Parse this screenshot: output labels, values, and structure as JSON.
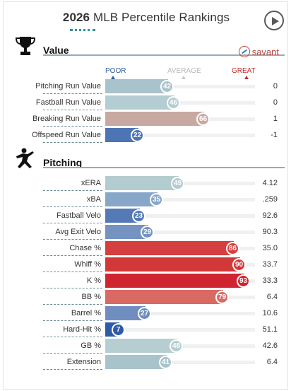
{
  "header": {
    "year": "2026",
    "title_rest": "MLB Percentile Rankings"
  },
  "sections": [
    {
      "label": "Value",
      "icon": "trophy-icon",
      "link_label": "savant",
      "rows": [
        {
          "name": "Pitching Run Value",
          "pct": 42,
          "value": "0",
          "color": "#a8c3cb"
        },
        {
          "name": "Fastball Run Value",
          "pct": 46,
          "value": "0",
          "color": "#b4cdd2"
        },
        {
          "name": "Breaking Run Value",
          "pct": 66,
          "value": "1",
          "color": "#c8a9a2"
        },
        {
          "name": "Offspeed Run Value",
          "pct": 22,
          "value": "-1",
          "color": "#4d74b4"
        }
      ]
    },
    {
      "label": "Pitching",
      "icon": "pitcher-icon",
      "rows": [
        {
          "name": "xERA",
          "pct": 49,
          "value": "4.12",
          "color": "#b3ccd0"
        },
        {
          "name": "xBA",
          "pct": 35,
          "value": ".259",
          "color": "#87a7c8"
        },
        {
          "name": "Fastball Velo",
          "pct": 23,
          "value": "92.6",
          "color": "#5479b5"
        },
        {
          "name": "Avg Exit Velo",
          "pct": 29,
          "value": "90.3",
          "color": "#7593c1"
        },
        {
          "name": "Chase %",
          "pct": 86,
          "value": "35.0",
          "color": "#d43f3f"
        },
        {
          "name": "Whiff %",
          "pct": 90,
          "value": "33.7",
          "color": "#d33838"
        },
        {
          "name": "K %",
          "pct": 93,
          "value": "33.3",
          "color": "#cf2530"
        },
        {
          "name": "BB %",
          "pct": 79,
          "value": "6.4",
          "color": "#d86a63"
        },
        {
          "name": "Barrel %",
          "pct": 27,
          "value": "10.6",
          "color": "#6f8ebf"
        },
        {
          "name": "Hard-Hit %",
          "pct": 7,
          "value": "51.1",
          "color": "#2e5aa6"
        },
        {
          "name": "GB %",
          "pct": 48,
          "value": "42.6",
          "color": "#b6ced2"
        },
        {
          "name": "Extension",
          "pct": 41,
          "value": "6.4",
          "color": "#a9c3cc"
        }
      ]
    }
  ],
  "scale": {
    "poor": "POOR",
    "average": "AVERAGE",
    "great": "GREAT"
  },
  "colors": {
    "poor": "#345d9e",
    "average": "#b8b8b8",
    "great": "#c62d2d",
    "accent": "#3a8fa0"
  }
}
